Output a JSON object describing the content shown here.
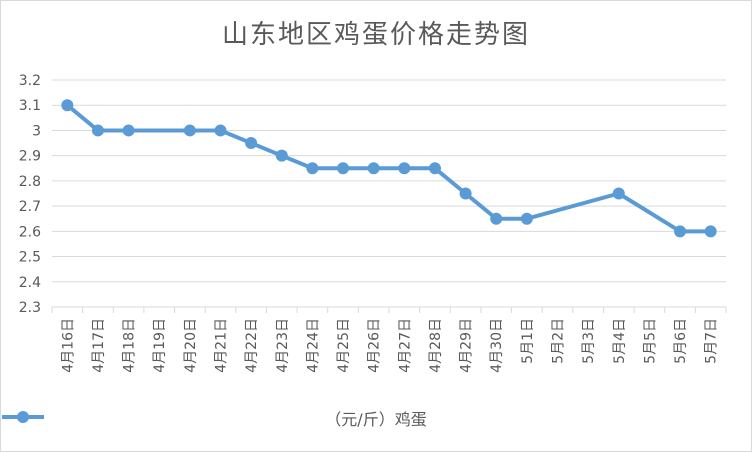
{
  "chart_data": {
    "type": "line",
    "title": "山东地区鸡蛋价格走势图",
    "xlabel": "",
    "ylabel": "",
    "ylim": [
      2.3,
      3.2
    ],
    "yticks": [
      "3.2",
      "3.1",
      "3",
      "2.9",
      "2.8",
      "2.7",
      "2.6",
      "2.5",
      "2.4",
      "2.3"
    ],
    "categories": [
      "4月16日",
      "4月17日",
      "4月18日",
      "4月19日",
      "4月20日",
      "4月21日",
      "4月22日",
      "4月23日",
      "4月24日",
      "4月25日",
      "4月26日",
      "4月27日",
      "4月28日",
      "4月29日",
      "4月30日",
      "5月1日",
      "5月2日",
      "5月3日",
      "5月4日",
      "5月5日",
      "5月6日",
      "5月7日"
    ],
    "series": [
      {
        "name": "（元/斤）鸡蛋",
        "color": "#5b9bd5",
        "values": [
          3.1,
          3.0,
          3.0,
          null,
          3.0,
          3.0,
          2.95,
          2.9,
          2.85,
          2.85,
          2.85,
          2.85,
          2.85,
          2.75,
          2.65,
          2.65,
          null,
          null,
          2.75,
          null,
          2.6,
          2.6
        ]
      }
    ],
    "grid": true,
    "legend": "bottom"
  }
}
